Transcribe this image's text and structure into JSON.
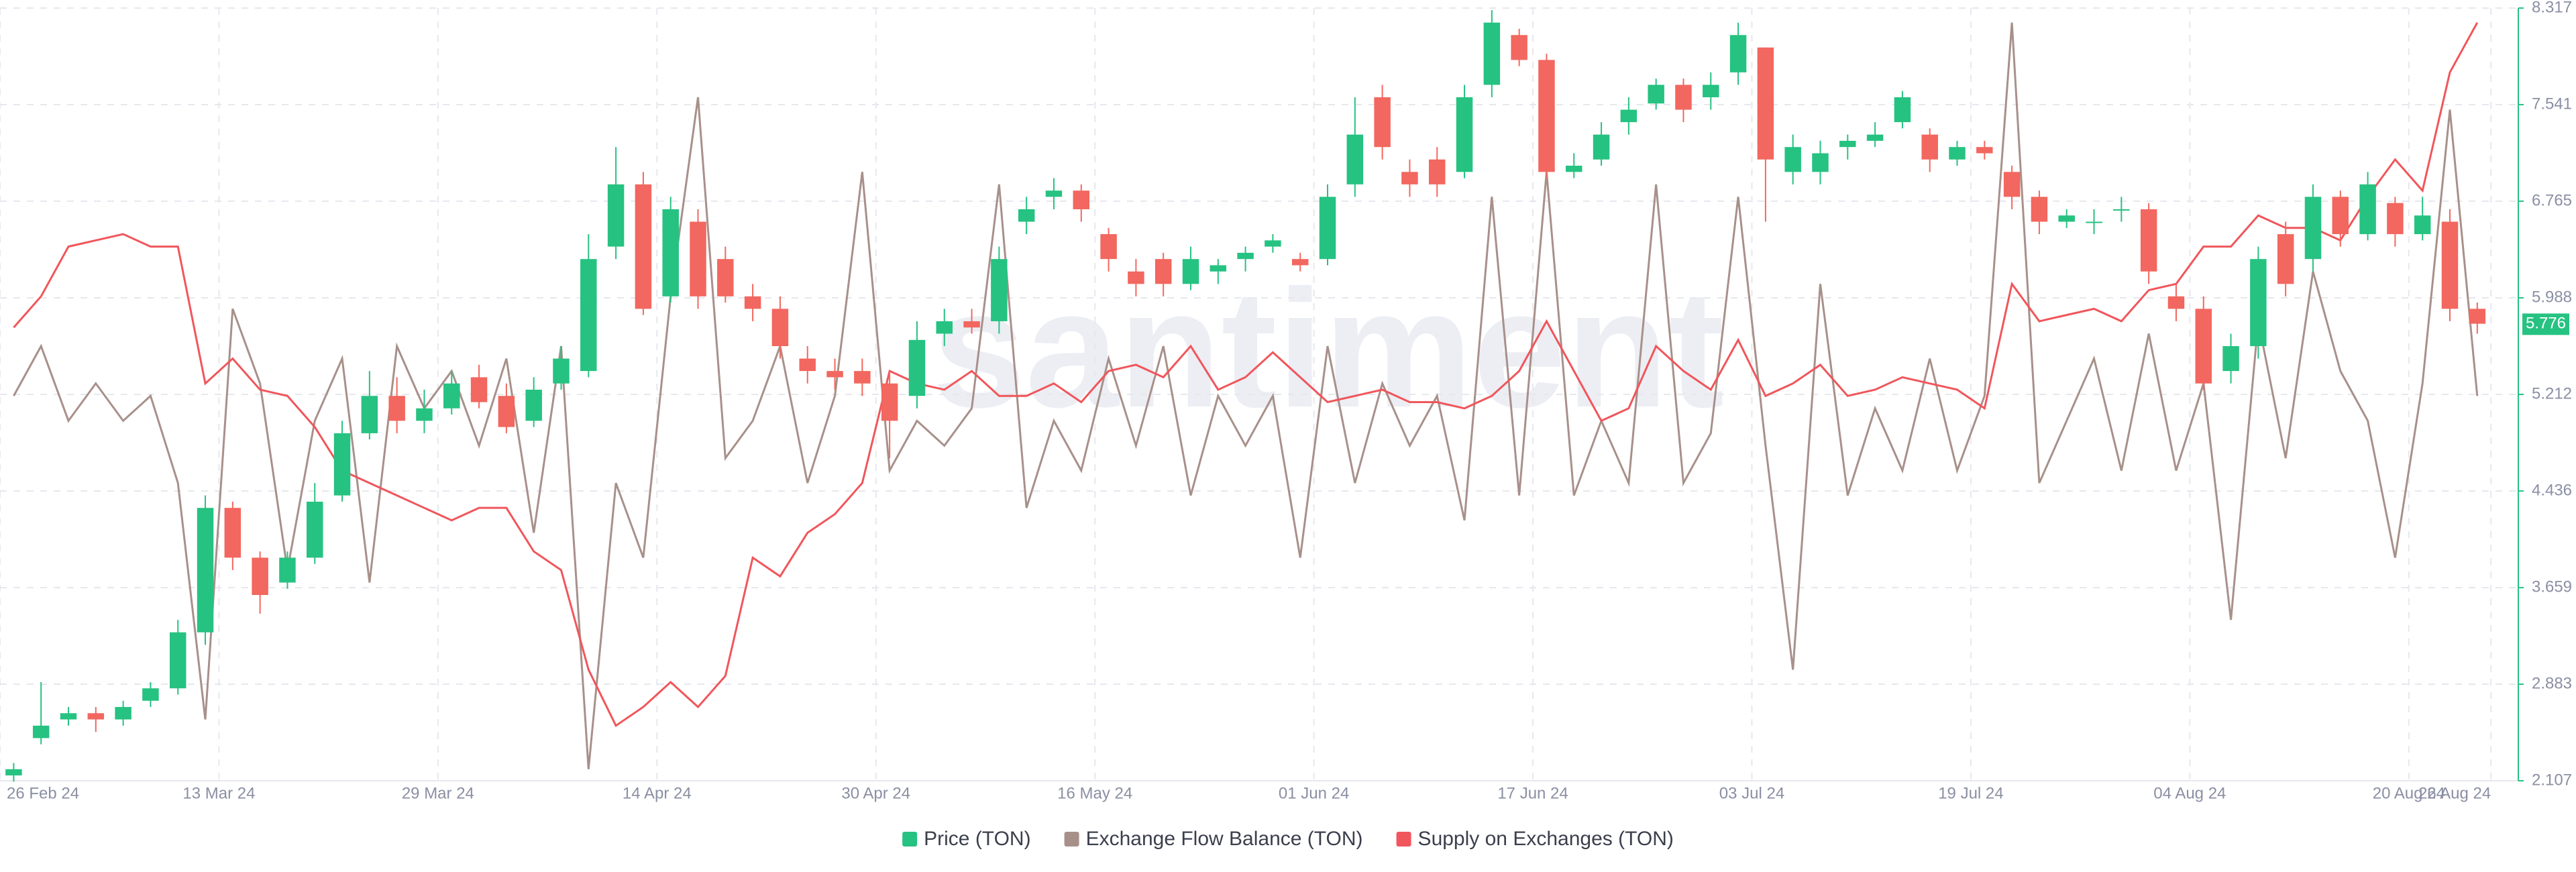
{
  "chart_data": {
    "type": "candlestick",
    "watermark": "santiment",
    "x": [
      "2024-02-27",
      "2024-02-29",
      "2024-03-02",
      "2024-03-04",
      "2024-03-06",
      "2024-03-08",
      "2024-03-10",
      "2024-03-12",
      "2024-03-14",
      "2024-03-16",
      "2024-03-18",
      "2024-03-20",
      "2024-03-22",
      "2024-03-24",
      "2024-03-26",
      "2024-03-28",
      "2024-03-30",
      "2024-04-01",
      "2024-04-03",
      "2024-04-05",
      "2024-04-07",
      "2024-04-09",
      "2024-04-11",
      "2024-04-13",
      "2024-04-15",
      "2024-04-17",
      "2024-04-19",
      "2024-04-21",
      "2024-04-23",
      "2024-04-25",
      "2024-04-27",
      "2024-04-29",
      "2024-05-01",
      "2024-05-03",
      "2024-05-05",
      "2024-05-07",
      "2024-05-09",
      "2024-05-11",
      "2024-05-13",
      "2024-05-15",
      "2024-05-17",
      "2024-05-19",
      "2024-05-21",
      "2024-05-23",
      "2024-05-25",
      "2024-05-27",
      "2024-05-29",
      "2024-05-31",
      "2024-06-02",
      "2024-06-04",
      "2024-06-06",
      "2024-06-08",
      "2024-06-10",
      "2024-06-12",
      "2024-06-14",
      "2024-06-16",
      "2024-06-18",
      "2024-06-20",
      "2024-06-22",
      "2024-06-24",
      "2024-06-26",
      "2024-06-28",
      "2024-06-30",
      "2024-07-02",
      "2024-07-04",
      "2024-07-06",
      "2024-07-08",
      "2024-07-10",
      "2024-07-12",
      "2024-07-14",
      "2024-07-16",
      "2024-07-18",
      "2024-07-20",
      "2024-07-22",
      "2024-07-24",
      "2024-07-26",
      "2024-07-28",
      "2024-07-30",
      "2024-08-01",
      "2024-08-03",
      "2024-08-05",
      "2024-08-07",
      "2024-08-09",
      "2024-08-11",
      "2024-08-13",
      "2024-08-15",
      "2024-08-17",
      "2024-08-19",
      "2024-08-21",
      "2024-08-23",
      "2024-08-25"
    ],
    "xlim": [
      "2024-02-26",
      "2024-08-28"
    ],
    "xticks": [
      {
        "value": "2024-02-26",
        "label": "26 Feb 24"
      },
      {
        "value": "2024-03-13",
        "label": "13 Mar 24"
      },
      {
        "value": "2024-03-29",
        "label": "29 Mar 24"
      },
      {
        "value": "2024-04-14",
        "label": "14 Apr 24"
      },
      {
        "value": "2024-04-30",
        "label": "30 Apr 24"
      },
      {
        "value": "2024-05-16",
        "label": "16 May 24"
      },
      {
        "value": "2024-06-01",
        "label": "01 Jun 24"
      },
      {
        "value": "2024-06-17",
        "label": "17 Jun 24"
      },
      {
        "value": "2024-07-03",
        "label": "03 Jul 24"
      },
      {
        "value": "2024-07-19",
        "label": "19 Jul 24"
      },
      {
        "value": "2024-08-04",
        "label": "04 Aug 24"
      },
      {
        "value": "2024-08-20",
        "label": "20 Aug 24"
      },
      {
        "value": "2024-08-26",
        "label": "26 Aug 24"
      }
    ],
    "ylim": [
      2.107,
      8.317
    ],
    "yticks": [
      2.107,
      2.883,
      3.659,
      4.436,
      5.212,
      5.988,
      6.765,
      7.541,
      8.317
    ],
    "grid": true,
    "last_price": 5.776,
    "up_color": "#26c281",
    "down_color": "#f2675f",
    "series": [
      {
        "name": "Price (TON)",
        "type": "candlestick",
        "color": "#26c281",
        "open": [
          2.15,
          2.45,
          2.6,
          2.65,
          2.6,
          2.75,
          2.85,
          3.3,
          4.3,
          3.9,
          3.7,
          3.9,
          4.4,
          4.9,
          5.2,
          5.0,
          5.1,
          5.35,
          5.2,
          5.0,
          5.3,
          5.4,
          6.4,
          6.9,
          6.0,
          6.6,
          6.3,
          6.0,
          5.9,
          5.5,
          5.4,
          5.4,
          5.3,
          5.2,
          5.7,
          5.8,
          5.8,
          6.6,
          6.8,
          6.85,
          6.5,
          6.2,
          6.3,
          6.1,
          6.2,
          6.3,
          6.4,
          6.3,
          6.3,
          6.9,
          7.6,
          7.0,
          7.1,
          7.0,
          7.7,
          8.1,
          7.9,
          7.0,
          7.1,
          7.4,
          7.55,
          7.7,
          7.6,
          7.8,
          8.0,
          7.0,
          7.0,
          7.2,
          7.25,
          7.4,
          7.3,
          7.1,
          7.2,
          7.0,
          6.8,
          6.6,
          6.6,
          6.7,
          6.7,
          6.0,
          5.9,
          5.4,
          5.6,
          6.5,
          6.3,
          6.8,
          6.5,
          6.75,
          6.5,
          6.6,
          5.9
        ],
        "high": [
          2.25,
          2.9,
          2.7,
          2.7,
          2.75,
          2.9,
          3.4,
          4.4,
          4.35,
          3.95,
          3.95,
          4.5,
          5.0,
          5.4,
          5.35,
          5.25,
          5.4,
          5.45,
          5.3,
          5.35,
          5.6,
          6.5,
          7.2,
          7.0,
          6.8,
          6.7,
          6.4,
          6.1,
          6.0,
          5.6,
          5.5,
          5.5,
          5.4,
          5.8,
          5.9,
          5.9,
          6.4,
          6.8,
          6.95,
          6.9,
          6.55,
          6.3,
          6.35,
          6.4,
          6.3,
          6.4,
          6.5,
          6.35,
          6.9,
          7.6,
          7.7,
          7.1,
          7.2,
          7.7,
          8.3,
          8.15,
          7.95,
          7.15,
          7.4,
          7.6,
          7.75,
          7.75,
          7.8,
          8.2,
          8.0,
          7.3,
          7.25,
          7.3,
          7.4,
          7.65,
          7.35,
          7.25,
          7.25,
          7.05,
          6.85,
          6.7,
          6.7,
          6.8,
          6.75,
          6.1,
          6.0,
          5.7,
          6.4,
          6.6,
          6.9,
          6.85,
          7.0,
          6.8,
          6.8,
          6.7,
          5.95
        ],
        "low": [
          2.1,
          2.4,
          2.55,
          2.5,
          2.55,
          2.7,
          2.8,
          3.2,
          3.8,
          3.45,
          3.65,
          3.85,
          4.35,
          4.85,
          4.9,
          4.9,
          5.05,
          5.1,
          4.9,
          4.95,
          5.25,
          5.35,
          6.3,
          5.85,
          5.95,
          5.9,
          5.95,
          5.8,
          5.5,
          5.3,
          5.25,
          5.2,
          4.7,
          5.1,
          5.6,
          5.7,
          5.7,
          6.5,
          6.7,
          6.6,
          6.2,
          6.0,
          6.0,
          6.05,
          6.1,
          6.2,
          6.35,
          6.2,
          6.25,
          6.8,
          7.1,
          6.8,
          6.8,
          6.95,
          7.6,
          7.85,
          6.95,
          6.95,
          7.05,
          7.3,
          7.5,
          7.4,
          7.5,
          7.7,
          6.6,
          6.9,
          6.9,
          7.1,
          7.2,
          7.35,
          7.0,
          7.05,
          7.1,
          6.7,
          6.5,
          6.55,
          6.5,
          6.6,
          6.1,
          5.8,
          5.25,
          5.3,
          5.5,
          6.0,
          6.2,
          6.4,
          6.45,
          6.4,
          6.45,
          5.8,
          5.7
        ],
        "close": [
          2.2,
          2.55,
          2.65,
          2.6,
          2.7,
          2.85,
          3.3,
          4.3,
          3.9,
          3.6,
          3.9,
          4.35,
          4.9,
          5.2,
          5.0,
          5.1,
          5.3,
          5.15,
          4.95,
          5.25,
          5.5,
          6.3,
          6.9,
          5.9,
          6.7,
          6.0,
          6.0,
          5.9,
          5.6,
          5.4,
          5.35,
          5.3,
          5.0,
          5.65,
          5.8,
          5.75,
          6.3,
          6.7,
          6.85,
          6.7,
          6.3,
          6.1,
          6.1,
          6.3,
          6.25,
          6.35,
          6.45,
          6.25,
          6.8,
          7.3,
          7.2,
          6.9,
          6.9,
          7.6,
          8.2,
          7.9,
          7.0,
          7.05,
          7.3,
          7.5,
          7.7,
          7.5,
          7.7,
          8.1,
          7.1,
          7.2,
          7.15,
          7.25,
          7.3,
          7.6,
          7.1,
          7.2,
          7.15,
          6.8,
          6.6,
          6.65,
          6.6,
          6.7,
          6.2,
          5.9,
          5.3,
          5.6,
          6.3,
          6.1,
          6.8,
          6.5,
          6.9,
          6.5,
          6.65,
          5.9,
          5.78
        ]
      },
      {
        "name": "Exchange Flow Balance (TON)",
        "type": "line",
        "color": "#a8908a",
        "values": [
          5.2,
          5.6,
          5.0,
          5.3,
          5.0,
          5.2,
          4.5,
          2.6,
          5.9,
          5.3,
          3.8,
          5.0,
          5.5,
          3.7,
          5.6,
          5.1,
          5.4,
          4.8,
          5.5,
          4.1,
          5.6,
          2.2,
          4.5,
          3.9,
          6.0,
          7.6,
          4.7,
          5.0,
          5.6,
          4.5,
          5.2,
          7.0,
          4.6,
          5.0,
          4.8,
          5.1,
          6.9,
          4.3,
          5.0,
          4.6,
          5.5,
          4.8,
          5.6,
          4.4,
          5.2,
          4.8,
          5.2,
          3.9,
          5.6,
          4.5,
          5.3,
          4.8,
          5.2,
          4.2,
          6.8,
          4.4,
          7.0,
          4.4,
          5.0,
          4.5,
          6.9,
          4.5,
          4.9,
          6.8,
          4.8,
          3.0,
          6.1,
          4.4,
          5.1,
          4.6,
          5.5,
          4.6,
          5.2,
          8.2,
          4.5,
          5.0,
          5.5,
          4.6,
          5.7,
          4.6,
          5.3,
          3.4,
          5.8,
          4.7,
          6.2,
          5.4,
          5.0,
          3.9,
          5.3,
          7.5,
          5.2
        ]
      },
      {
        "name": "Supply on Exchanges (TON)",
        "type": "line",
        "color": "#f0565b",
        "values": [
          5.75,
          6.0,
          6.4,
          6.45,
          6.5,
          6.4,
          6.4,
          5.3,
          5.5,
          5.25,
          5.2,
          4.95,
          4.6,
          4.5,
          4.4,
          4.3,
          4.2,
          4.3,
          4.3,
          3.95,
          3.8,
          3.0,
          2.55,
          2.7,
          2.9,
          2.7,
          2.95,
          3.9,
          3.75,
          4.1,
          4.25,
          4.5,
          5.4,
          5.3,
          5.25,
          5.4,
          5.2,
          5.2,
          5.3,
          5.15,
          5.4,
          5.45,
          5.35,
          5.6,
          5.25,
          5.35,
          5.55,
          5.35,
          5.15,
          5.2,
          5.25,
          5.15,
          5.15,
          5.1,
          5.2,
          5.4,
          5.8,
          5.4,
          5.0,
          5.1,
          5.6,
          5.4,
          5.25,
          5.65,
          5.2,
          5.3,
          5.45,
          5.2,
          5.25,
          5.35,
          5.3,
          5.25,
          5.1,
          6.1,
          5.8,
          5.85,
          5.9,
          5.8,
          6.05,
          6.1,
          6.4,
          6.4,
          6.65,
          6.55,
          6.55,
          6.45,
          6.8,
          7.1,
          6.85,
          7.8,
          8.2
        ]
      }
    ]
  }
}
